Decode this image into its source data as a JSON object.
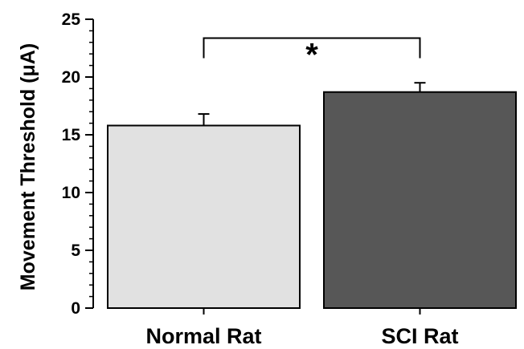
{
  "chart_data": {
    "type": "bar",
    "categories": [
      "Normal Rat",
      "SCI Rat"
    ],
    "values": [
      15.8,
      18.7
    ],
    "errors": [
      1.0,
      0.8
    ],
    "colors": [
      "#e1e1e1",
      "#575757"
    ],
    "ylabel": "Movement Threshold (μA)",
    "ylim": [
      0,
      25
    ],
    "yticks": [
      0,
      5,
      10,
      15,
      20,
      25
    ],
    "minor_tick_step": 1,
    "significance": {
      "label": "*",
      "between": [
        0,
        1
      ],
      "level": 24.2
    }
  }
}
